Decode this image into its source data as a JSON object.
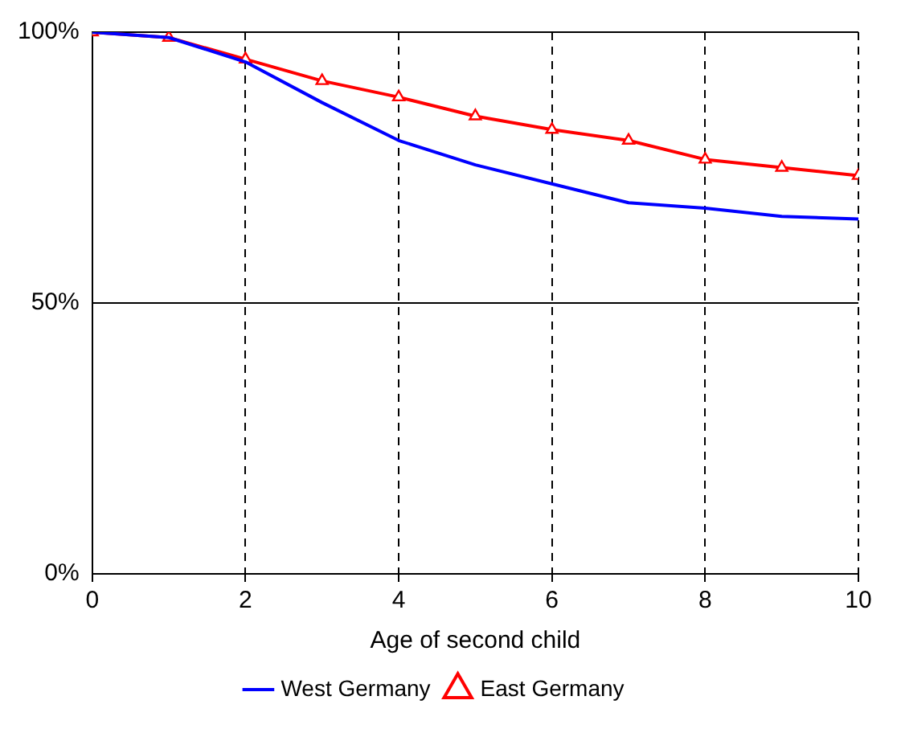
{
  "chart_data": {
    "type": "line",
    "xlabel": "Age of second child",
    "x": [
      0,
      1,
      2,
      3,
      4,
      5,
      6,
      7,
      8,
      9,
      10
    ],
    "series": [
      {
        "name": "West Germany",
        "color": "#0000ff",
        "marker": "none",
        "values": [
          100,
          99,
          94.5,
          87,
          80,
          75.5,
          72,
          68.5,
          67.5,
          66,
          65.5
        ]
      },
      {
        "name": "East Germany",
        "color": "#ff0000",
        "marker": "triangle",
        "values": [
          100,
          99,
          95,
          91,
          88,
          84.5,
          82,
          80,
          76.5,
          75,
          73.5
        ]
      }
    ],
    "xlim": [
      0,
      10
    ],
    "xticks": [
      0,
      2,
      4,
      6,
      8,
      10
    ],
    "ylim": [
      0,
      100
    ],
    "yticks": [
      {
        "value": 0,
        "label": "0%"
      },
      {
        "value": 50,
        "label": "50%"
      },
      {
        "value": 100,
        "label": "100%"
      }
    ],
    "grid": "x",
    "ref_lines": [
      {
        "axis": "y",
        "value": 50,
        "color": "#000000",
        "line_style": "solid"
      }
    ],
    "legend": "bottom",
    "line_style": "solid"
  }
}
